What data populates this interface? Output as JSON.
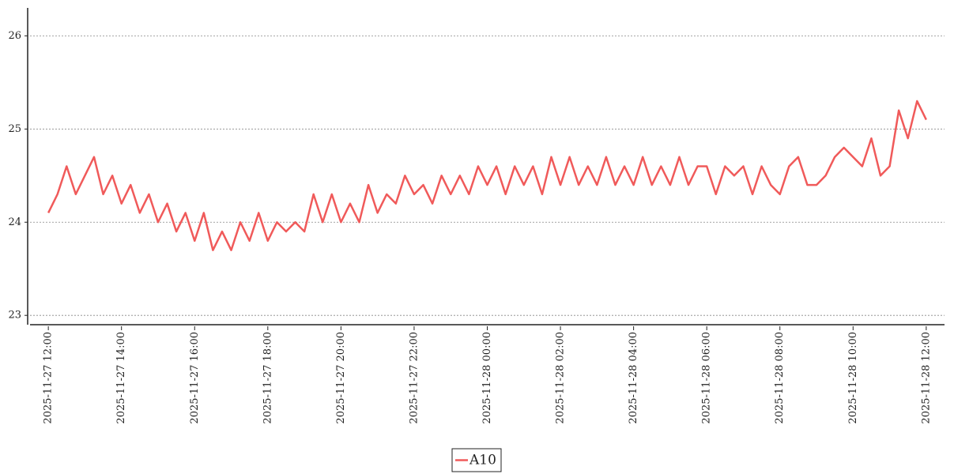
{
  "chart_data": {
    "type": "line",
    "x": [
      "2025-11-27 12:00",
      "2025-11-27 12:15",
      "2025-11-27 12:30",
      "2025-11-27 12:45",
      "2025-11-27 13:00",
      "2025-11-27 13:15",
      "2025-11-27 13:30",
      "2025-11-27 13:45",
      "2025-11-27 14:00",
      "2025-11-27 14:15",
      "2025-11-27 14:30",
      "2025-11-27 14:45",
      "2025-11-27 15:00",
      "2025-11-27 15:15",
      "2025-11-27 15:30",
      "2025-11-27 15:45",
      "2025-11-27 16:00",
      "2025-11-27 16:15",
      "2025-11-27 16:30",
      "2025-11-27 16:45",
      "2025-11-27 17:00",
      "2025-11-27 17:15",
      "2025-11-27 17:30",
      "2025-11-27 17:45",
      "2025-11-27 18:00",
      "2025-11-27 18:15",
      "2025-11-27 18:30",
      "2025-11-27 18:45",
      "2025-11-27 19:00",
      "2025-11-27 19:15",
      "2025-11-27 19:30",
      "2025-11-27 19:45",
      "2025-11-27 20:00",
      "2025-11-27 20:15",
      "2025-11-27 20:30",
      "2025-11-27 20:45",
      "2025-11-27 21:00",
      "2025-11-27 21:15",
      "2025-11-27 21:30",
      "2025-11-27 21:45",
      "2025-11-27 22:00",
      "2025-11-27 22:15",
      "2025-11-27 22:30",
      "2025-11-27 22:45",
      "2025-11-27 23:00",
      "2025-11-27 23:15",
      "2025-11-27 23:30",
      "2025-11-27 23:45",
      "2025-11-28 00:00",
      "2025-11-28 00:15",
      "2025-11-28 00:30",
      "2025-11-28 00:45",
      "2025-11-28 01:00",
      "2025-11-28 01:15",
      "2025-11-28 01:30",
      "2025-11-28 01:45",
      "2025-11-28 02:00",
      "2025-11-28 02:15",
      "2025-11-28 02:30",
      "2025-11-28 02:45",
      "2025-11-28 03:00",
      "2025-11-28 03:15",
      "2025-11-28 03:30",
      "2025-11-28 03:45",
      "2025-11-28 04:00",
      "2025-11-28 04:15",
      "2025-11-28 04:30",
      "2025-11-28 04:45",
      "2025-11-28 05:00",
      "2025-11-28 05:15",
      "2025-11-28 05:30",
      "2025-11-28 05:45",
      "2025-11-28 06:00",
      "2025-11-28 06:15",
      "2025-11-28 06:30",
      "2025-11-28 06:45",
      "2025-11-28 07:00",
      "2025-11-28 07:15",
      "2025-11-28 07:30",
      "2025-11-28 07:45",
      "2025-11-28 08:00",
      "2025-11-28 08:15",
      "2025-11-28 08:30",
      "2025-11-28 08:45",
      "2025-11-28 09:00",
      "2025-11-28 09:15",
      "2025-11-28 09:30",
      "2025-11-28 09:45",
      "2025-11-28 10:00",
      "2025-11-28 10:15",
      "2025-11-28 10:30",
      "2025-11-28 10:45",
      "2025-11-28 11:00",
      "2025-11-28 11:15",
      "2025-11-28 11:30",
      "2025-11-28 11:45",
      "2025-11-28 12:00"
    ],
    "series": [
      {
        "name": "A10",
        "color": "#f05a5a",
        "values": [
          24.1,
          24.3,
          24.6,
          24.3,
          24.5,
          24.7,
          24.3,
          24.5,
          24.2,
          24.4,
          24.1,
          24.3,
          24.0,
          24.2,
          23.9,
          24.1,
          23.8,
          24.1,
          23.7,
          23.9,
          23.7,
          24.0,
          23.8,
          24.1,
          23.8,
          24.0,
          23.9,
          24.0,
          23.9,
          24.3,
          24.0,
          24.3,
          24.0,
          24.2,
          24.0,
          24.4,
          24.1,
          24.3,
          24.2,
          24.5,
          24.3,
          24.4,
          24.2,
          24.5,
          24.3,
          24.5,
          24.3,
          24.6,
          24.4,
          24.6,
          24.3,
          24.6,
          24.4,
          24.6,
          24.3,
          24.7,
          24.4,
          24.7,
          24.4,
          24.6,
          24.4,
          24.7,
          24.4,
          24.6,
          24.4,
          24.7,
          24.4,
          24.6,
          24.4,
          24.7,
          24.4,
          24.6,
          24.6,
          24.3,
          24.6,
          24.5,
          24.6,
          24.3,
          24.6,
          24.4,
          24.3,
          24.6,
          24.7,
          24.4,
          24.4,
          24.5,
          24.7,
          24.8,
          24.7,
          24.6,
          24.9,
          24.5,
          24.6,
          25.2,
          24.9,
          25.3,
          25.1
        ]
      }
    ],
    "xlim": [
      "2025-11-27 11:30",
      "2025-11-28 12:30"
    ],
    "xticks": [
      "2025-11-27 12:00",
      "2025-11-27 14:00",
      "2025-11-27 16:00",
      "2025-11-27 18:00",
      "2025-11-27 20:00",
      "2025-11-27 22:00",
      "2025-11-28 00:00",
      "2025-11-28 02:00",
      "2025-11-28 04:00",
      "2025-11-28 06:00",
      "2025-11-28 08:00",
      "2025-11-28 10:00",
      "2025-11-28 12:00"
    ],
    "ylim": [
      22.9,
      26.3
    ],
    "yticks": [
      23,
      24,
      25,
      26
    ],
    "grid": true,
    "legend": "bottom"
  }
}
